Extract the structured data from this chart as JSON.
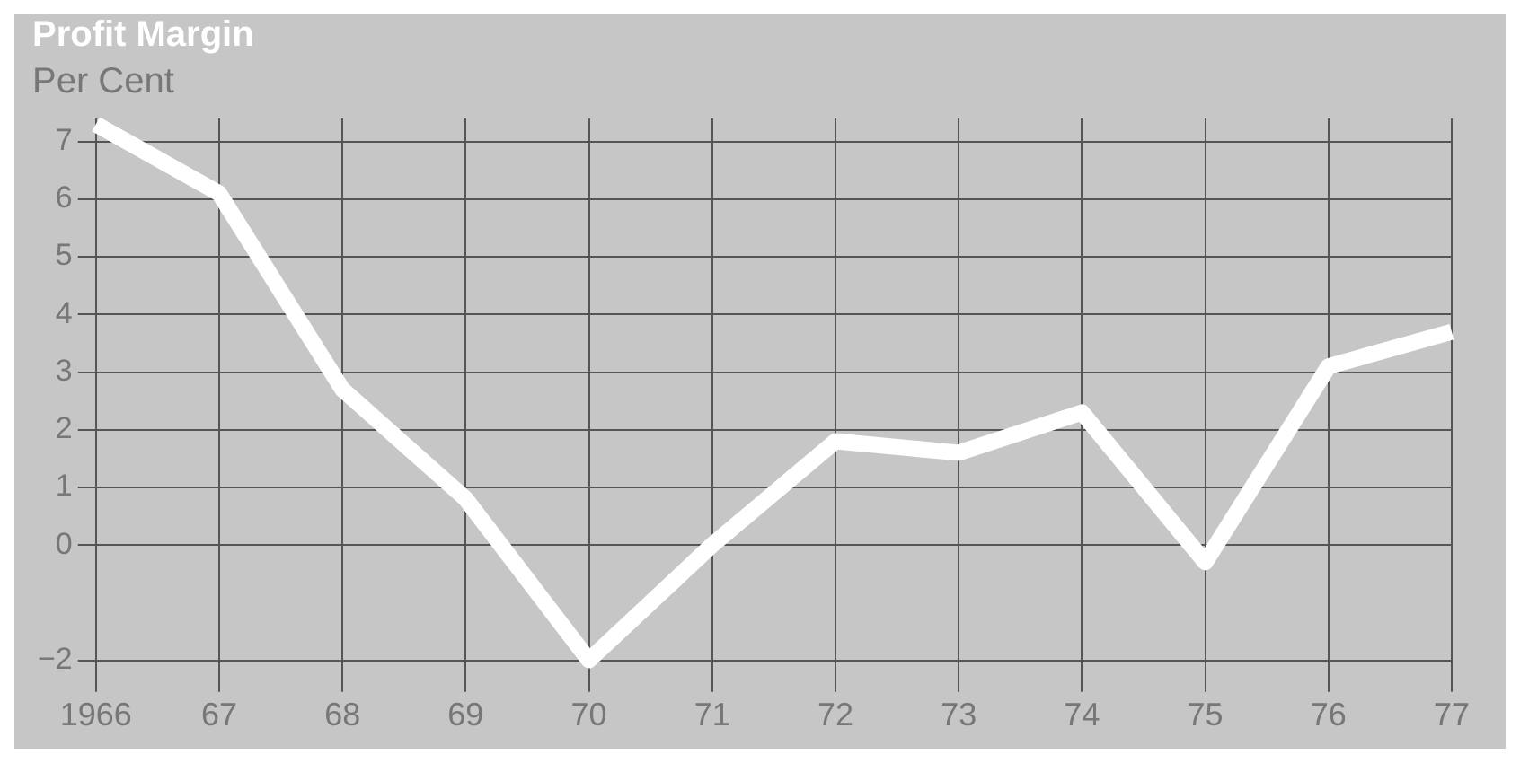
{
  "chart_data": {
    "type": "line",
    "title": "Profit Margin",
    "ylabel": "Per Cent",
    "categories": [
      "1966",
      "67",
      "68",
      "69",
      "70",
      "71",
      "72",
      "73",
      "74",
      "75",
      "76",
      "77"
    ],
    "series": [
      {
        "color": "#ffffff",
        "values": [
          7.3,
          6.1,
          2.7,
          0.8,
          -2,
          0,
          1.8,
          1.6,
          2.3,
          -0.3,
          3.1,
          3.7
        ]
      }
    ],
    "ylim": [
      -2.3,
      7.4
    ],
    "yticks": [
      -2,
      0,
      1,
      2,
      3,
      4,
      5,
      6,
      7
    ],
    "grid": true,
    "legend": false,
    "marker": "none",
    "line_style": "solid"
  }
}
